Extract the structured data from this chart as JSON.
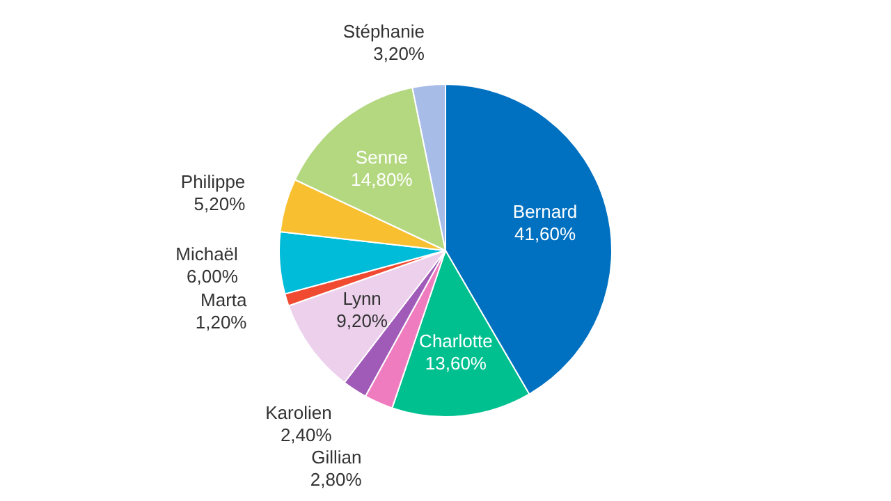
{
  "chart_data": {
    "type": "pie",
    "categories": [
      "Bernard",
      "Charlotte",
      "Gillian",
      "Karolien",
      "Lynn",
      "Marta",
      "Michaël",
      "Philippe",
      "Senne",
      "Stéphanie"
    ],
    "values": [
      41.6,
      13.6,
      2.8,
      2.4,
      9.2,
      1.2,
      6.0,
      5.2,
      14.8,
      3.2
    ],
    "colors": [
      "#0070c0",
      "#00c08f",
      "#f07cc0",
      "#a05ab8",
      "#ecd0ec",
      "#f04a30",
      "#00bcd8",
      "#f8c030",
      "#b4d880",
      "#a8bce8"
    ],
    "data_labels": true,
    "value_labels": [
      "41,60%",
      "13,60%",
      "2,80%",
      "2,40%",
      "9,20%",
      "1,20%",
      "6,00%",
      "5,20%",
      "14,80%",
      "3,20%"
    ],
    "legend": false
  }
}
